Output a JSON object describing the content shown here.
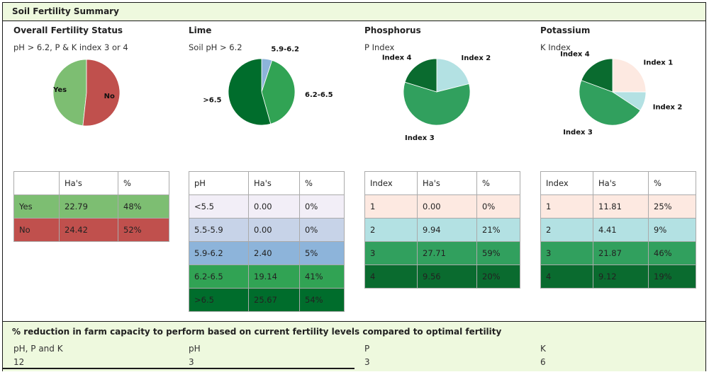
{
  "header": {
    "title": "Soil Fertility Summary"
  },
  "colors": {
    "yes": "#7dbe72",
    "no": "#c0504d",
    "ph_lt55": "#f2eef7",
    "ph_55_59": "#c7d3e8",
    "ph_59_62": "#8db4da",
    "ph_62_65": "#31a354",
    "ph_gt65": "#006d2c",
    "idx1": "#fde9e1",
    "idx2": "#b3e1e3",
    "idx3": "#31a05e",
    "idx4": "#0a6b2f"
  },
  "sections": [
    {
      "title": "Overall Fertility Status",
      "subtitle": "pH > 6.2, P & K index 3 or 4",
      "table": {
        "headers": [
          "",
          "Ha's",
          "%"
        ],
        "rows": [
          [
            "Yes",
            "22.79",
            "48%"
          ],
          [
            "No",
            "24.42",
            "52%"
          ]
        ]
      }
    },
    {
      "title": "Lime",
      "subtitle": "Soil pH > 6.2",
      "table": {
        "headers": [
          "pH",
          "Ha's",
          "%"
        ],
        "rows": [
          [
            "<5.5",
            "0.00",
            "0%"
          ],
          [
            "5.5-5.9",
            "0.00",
            "0%"
          ],
          [
            "5.9-6.2",
            "2.40",
            "5%"
          ],
          [
            "6.2-6.5",
            "19.14",
            "41%"
          ],
          [
            ">6.5",
            "25.67",
            "54%"
          ]
        ]
      }
    },
    {
      "title": "Phosphorus",
      "subtitle": "P Index",
      "table": {
        "headers": [
          "Index",
          "Ha's",
          "%"
        ],
        "rows": [
          [
            "1",
            "0.00",
            "0%"
          ],
          [
            "2",
            "9.94",
            "21%"
          ],
          [
            "3",
            "27.71",
            "59%"
          ],
          [
            "4",
            "9.56",
            "20%"
          ]
        ]
      }
    },
    {
      "title": "Potassium",
      "subtitle": "K Index",
      "table": {
        "headers": [
          "Index",
          "Ha's",
          "%"
        ],
        "rows": [
          [
            "1",
            "11.81",
            "25%"
          ],
          [
            "2",
            "4.41",
            "9%"
          ],
          [
            "3",
            "21.87",
            "46%"
          ],
          [
            "4",
            "9.12",
            "19%"
          ]
        ]
      }
    }
  ],
  "chart_data": [
    {
      "type": "pie",
      "title": "Overall Fertility Status",
      "slices": [
        {
          "label": "Yes",
          "value": 22.79,
          "color": "#7dbe72"
        },
        {
          "label": "No",
          "value": 24.42,
          "color": "#c0504d"
        }
      ]
    },
    {
      "type": "pie",
      "title": "Lime",
      "slices": [
        {
          "label": "5.9-6.2",
          "value": 2.4,
          "color": "#8db4da"
        },
        {
          "label": "6.2-6.5",
          "value": 19.14,
          "color": "#31a354"
        },
        {
          "label": ">6.5",
          "value": 25.67,
          "color": "#006d2c"
        }
      ]
    },
    {
      "type": "pie",
      "title": "Phosphorus",
      "slices": [
        {
          "label": "Index 2",
          "value": 9.94,
          "color": "#b3e1e3"
        },
        {
          "label": "Index 3",
          "value": 27.71,
          "color": "#31a05e"
        },
        {
          "label": "Index 4",
          "value": 9.56,
          "color": "#0a6b2f"
        }
      ]
    },
    {
      "type": "pie",
      "title": "Potassium",
      "slices": [
        {
          "label": "Index 1",
          "value": 11.81,
          "color": "#fde9e1"
        },
        {
          "label": "Index 2",
          "value": 4.41,
          "color": "#b3e1e3"
        },
        {
          "label": "Index 3",
          "value": 21.87,
          "color": "#31a05e"
        },
        {
          "label": "Index 4",
          "value": 9.12,
          "color": "#0a6b2f"
        }
      ]
    }
  ],
  "footer": {
    "title": "% reduction in farm capacity to perform based on current fertility levels compared to optimal fertility",
    "items": [
      {
        "label": "pH, P and K",
        "value": "12"
      },
      {
        "label": "pH",
        "value": "3"
      },
      {
        "label": "P",
        "value": "3"
      },
      {
        "label": "K",
        "value": "6"
      }
    ]
  }
}
